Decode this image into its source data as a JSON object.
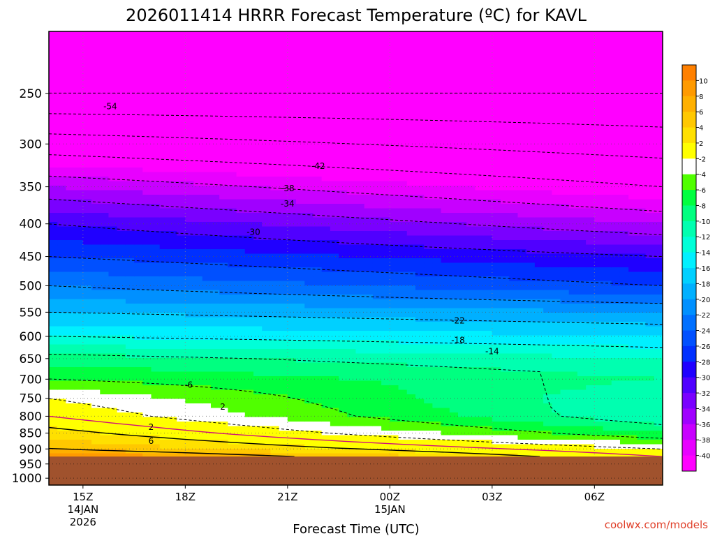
{
  "chart_data": {
    "type": "heatmap",
    "title": "2026011414 HRRR Forecast Temperature (ºC) for KAVL",
    "xlabel": "Forecast Time (UTC)",
    "ylabel": "",
    "credit": "coolwx.com/models",
    "x_ticks": [
      {
        "hour": 15,
        "lines": [
          "15Z",
          "14JAN",
          "2026"
        ]
      },
      {
        "hour": 18,
        "lines": [
          "18Z"
        ]
      },
      {
        "hour": 21,
        "lines": [
          "21Z"
        ]
      },
      {
        "hour": 24,
        "lines": [
          "00Z",
          "15JAN"
        ]
      },
      {
        "hour": 27,
        "lines": [
          "03Z"
        ]
      },
      {
        "hour": 30,
        "lines": [
          "06Z"
        ]
      }
    ],
    "xlim": [
      14,
      32
    ],
    "y_ticks": [
      250,
      300,
      350,
      400,
      450,
      500,
      550,
      600,
      650,
      700,
      750,
      800,
      850,
      900,
      950,
      1000
    ],
    "ylim": [
      1025,
      200
    ],
    "ground_pressure": 925,
    "ground_color": "#a0522d",
    "colorbar": {
      "ticks": [
        "10",
        "8",
        "6",
        "4",
        "2",
        "-2",
        "-4",
        "-6",
        "-8",
        "-10",
        "-12",
        "-14",
        "-16",
        "-18",
        "-20",
        "-22",
        "-24",
        "-26",
        "-28",
        "-30",
        "-32",
        "-34",
        "-36",
        "-38",
        "-40"
      ],
      "colors": [
        "#ff8000",
        "#ff9a00",
        "#ffb000",
        "#ffc800",
        "#ffe000",
        "#ffff00",
        "#ffffff",
        "#50ff00",
        "#00ff40",
        "#00ff80",
        "#00ffb0",
        "#00ffd8",
        "#00f0ff",
        "#00d0ff",
        "#00b0ff",
        "#0090ff",
        "#0070ff",
        "#0050ff",
        "#0030ff",
        "#2000ff",
        "#5000ff",
        "#7a00ff",
        "#a000ff",
        "#c800ff",
        "#e800ff",
        "#ff00ff"
      ]
    },
    "temperature_profile": {
      "pressure": [
        925,
        900,
        850,
        800,
        750,
        700,
        650,
        600,
        550,
        500,
        450,
        400,
        350,
        300,
        250,
        200
      ],
      "temperature_start": [
        10,
        6,
        3,
        0,
        -2,
        -6,
        -9,
        -14,
        -18,
        -22,
        -26,
        -30,
        -36,
        -44,
        -54,
        -56
      ],
      "temperature_end": [
        0,
        -2,
        -8,
        -12,
        -12,
        -10,
        -12,
        -16,
        -20,
        -26,
        -30,
        -36,
        -42,
        -48,
        -54,
        -56
      ]
    },
    "contour_labels": [
      {
        "text": "-54",
        "hour": 15.8,
        "p": 262
      },
      {
        "text": "-42",
        "hour": 21.9,
        "p": 325
      },
      {
        "text": "-38",
        "hour": 21.0,
        "p": 352
      },
      {
        "text": "-34",
        "hour": 21.0,
        "p": 372
      },
      {
        "text": "-30",
        "hour": 20.0,
        "p": 412
      },
      {
        "text": "-22",
        "hour": 26.0,
        "p": 567
      },
      {
        "text": "-18",
        "hour": 26.0,
        "p": 608
      },
      {
        "text": "-14",
        "hour": 27.0,
        "p": 633
      },
      {
        "text": "-6",
        "hour": 18.1,
        "p": 715
      },
      {
        "text": "2",
        "hour": 19.1,
        "p": 773
      },
      {
        "text": "2",
        "hour": 17.0,
        "p": 832
      },
      {
        "text": "6",
        "hour": 17.0,
        "p": 875
      }
    ]
  }
}
